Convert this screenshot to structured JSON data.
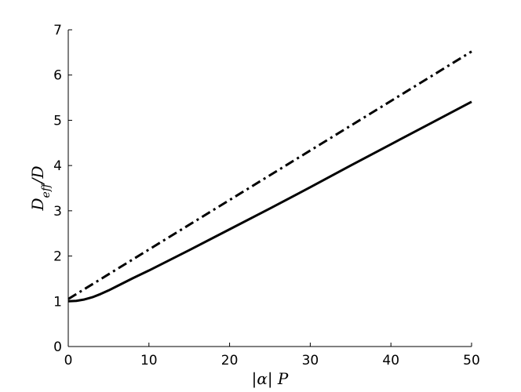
{
  "chart_data": {
    "type": "line",
    "xlabel": "|α| P",
    "ylabel": "D_eff / D",
    "ylabel_main": "D",
    "ylabel_sub": "eff",
    "ylabel_tail": "/D",
    "xlim": [
      0,
      50
    ],
    "ylim": [
      0,
      7
    ],
    "x_ticks": [
      0,
      10,
      20,
      30,
      40,
      50
    ],
    "y_ticks": [
      0,
      1,
      2,
      3,
      4,
      5,
      6,
      7
    ],
    "x_tick_labels": [
      "0",
      "10",
      "20",
      "30",
      "40",
      "50"
    ],
    "y_tick_labels": [
      "0",
      "1",
      "2",
      "3",
      "4",
      "5",
      "6",
      "7"
    ],
    "grid": false,
    "series": [
      {
        "style": "solid",
        "color": "#000000",
        "x": [
          0,
          1,
          2,
          3,
          4,
          5,
          6,
          8,
          10,
          15,
          20,
          25,
          30,
          35,
          40,
          45,
          50
        ],
        "y": [
          1.0,
          1.01,
          1.04,
          1.09,
          1.16,
          1.24,
          1.33,
          1.51,
          1.68,
          2.13,
          2.59,
          3.05,
          3.52,
          4.0,
          4.47,
          4.94,
          5.41
        ]
      },
      {
        "style": "dashdot",
        "color": "#000000",
        "x": [
          0,
          50
        ],
        "y": [
          1.05,
          6.52
        ]
      }
    ]
  }
}
